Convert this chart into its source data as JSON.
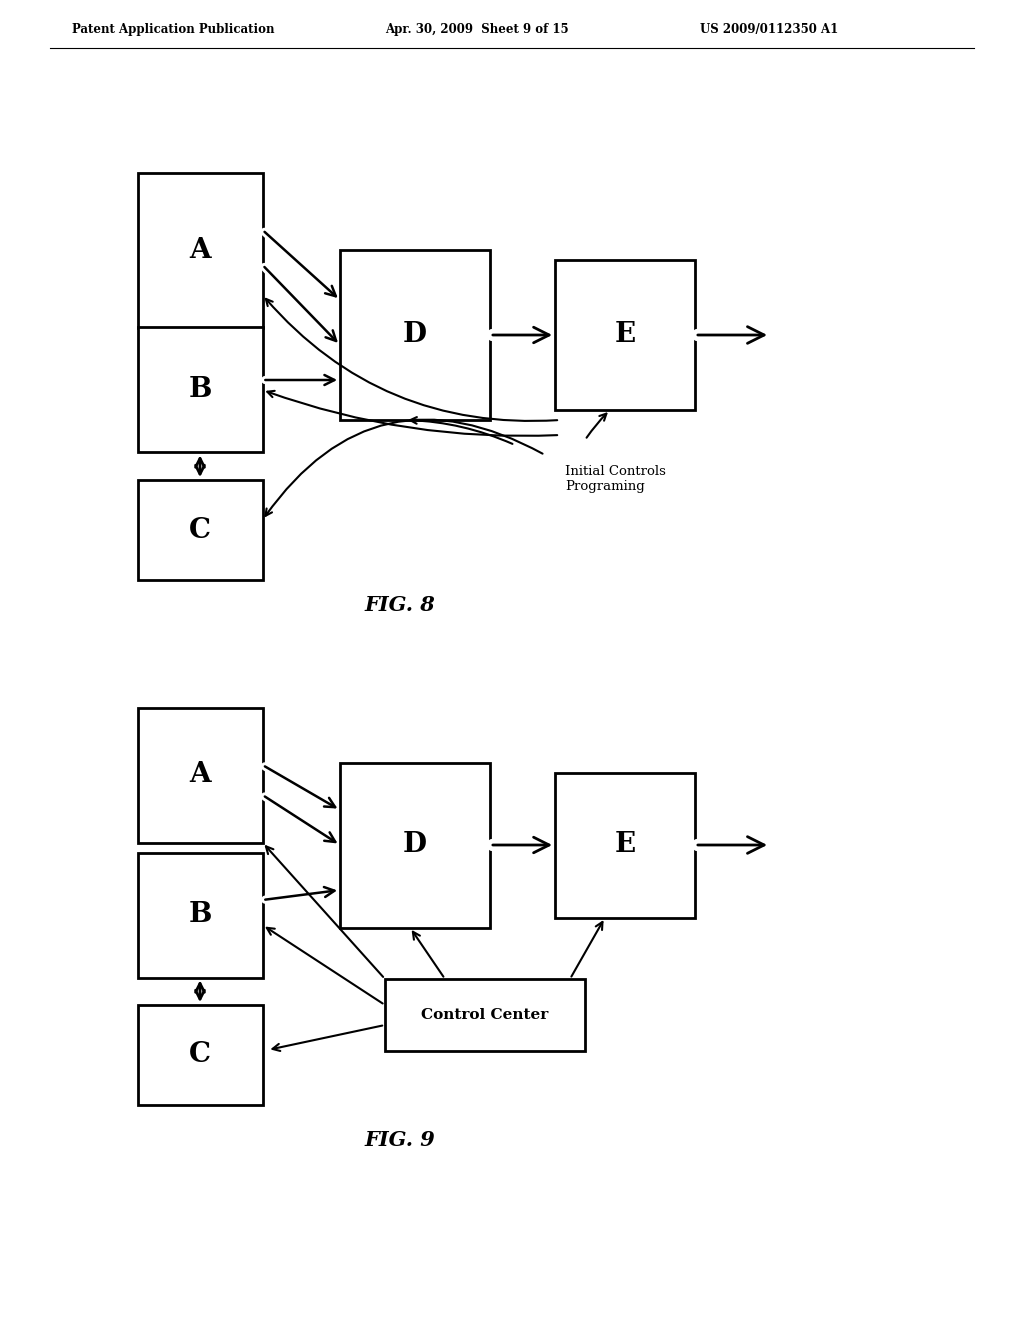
{
  "header_left": "Patent Application Publication",
  "header_mid": "Apr. 30, 2009  Sheet 9 of 15",
  "header_right": "US 2009/0112350 A1",
  "fig8_label": "FIG. 8",
  "fig9_label": "FIG. 9",
  "bg_color": "#ffffff",
  "box_edge_color": "#000000",
  "box_face_color": "#ffffff",
  "arrow_color": "#000000",
  "text_color": "#000000",
  "fig8_annotation": "Initial Controls\nPrograming"
}
